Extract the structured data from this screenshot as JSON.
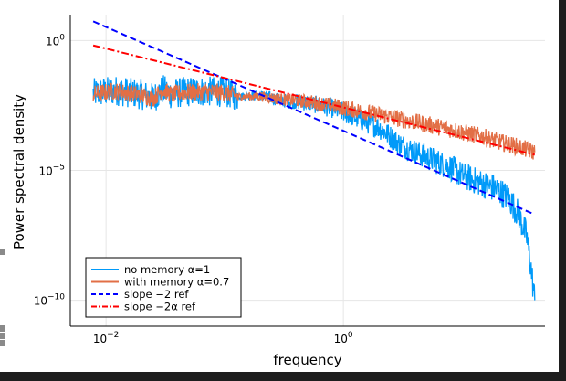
{
  "chart_data": {
    "type": "line",
    "title": "",
    "xlabel": "frequency",
    "ylabel": "Power spectral density",
    "xscale": "log",
    "yscale": "log",
    "xlim": [
      0.005,
      50
    ],
    "ylim": [
      1e-11,
      10
    ],
    "grid": true,
    "legend_position": "bottom-left",
    "x_ticks": [
      {
        "value": 0.01,
        "base": "10",
        "exp": "−2"
      },
      {
        "value": 1,
        "base": "10",
        "exp": "0"
      }
    ],
    "y_ticks": [
      {
        "value": 1,
        "base": "10",
        "exp": "0"
      },
      {
        "value": 1e-05,
        "base": "10",
        "exp": "−5"
      },
      {
        "value": 1e-10,
        "base": "10",
        "exp": "−10"
      }
    ],
    "x_extent": [
      0.0078,
      41
    ],
    "series": [
      {
        "name": "no memory α=1",
        "color": "#009af9",
        "style": "solid",
        "points": [
          [
            0.0078,
            0.0093
          ],
          [
            0.012,
            0.012
          ],
          [
            0.02,
            0.0083
          ],
          [
            0.025,
            0.0061
          ],
          [
            0.03,
            0.013
          ],
          [
            0.036,
            0.0084
          ],
          [
            0.045,
            0.0105
          ],
          [
            0.06,
            0.011
          ],
          [
            0.08,
            0.0109
          ],
          [
            0.1,
            0.0104
          ],
          [
            0.13,
            0.0072
          ],
          [
            0.2,
            0.008
          ],
          [
            0.3,
            0.005
          ],
          [
            0.5,
            0.004
          ],
          [
            0.8,
            0.0025
          ],
          [
            1,
            0.0017
          ],
          [
            2,
            0.00045
          ],
          [
            3,
            0.0001
          ],
          [
            5,
            3.3e-05
          ],
          [
            8,
            1.3e-05
          ],
          [
            10,
            6.5e-06
          ],
          [
            15,
            3e-06
          ],
          [
            20,
            1.8e-06
          ],
          [
            25,
            8e-07
          ],
          [
            30,
            2e-07
          ],
          [
            35,
            3e-08
          ],
          [
            38,
            2e-09
          ],
          [
            41,
            1e-10
          ]
        ],
        "noise": [
          [
            0.13,
            0.3
          ],
          [
            0.3,
            0.6
          ],
          [
            1,
            0.9
          ],
          [
            5,
            1.1
          ],
          [
            41,
            1.3
          ]
        ]
      },
      {
        "name": "with memory α=0.7",
        "color": "#e26f46",
        "style": "solid",
        "points": [
          [
            0.0078,
            0.0088
          ],
          [
            0.012,
            0.0115
          ],
          [
            0.02,
            0.008
          ],
          [
            0.025,
            0.006
          ],
          [
            0.03,
            0.0128
          ],
          [
            0.036,
            0.0082
          ],
          [
            0.045,
            0.0102
          ],
          [
            0.06,
            0.0105
          ],
          [
            0.08,
            0.0105
          ],
          [
            0.1,
            0.01
          ],
          [
            0.13,
            0.007
          ],
          [
            0.2,
            0.0072
          ],
          [
            0.3,
            0.0055
          ],
          [
            0.5,
            0.0045
          ],
          [
            0.8,
            0.0032
          ],
          [
            1,
            0.0026
          ],
          [
            2,
            0.0014
          ],
          [
            3,
            0.00095
          ],
          [
            5,
            0.0006
          ],
          [
            8,
            0.00038
          ],
          [
            10,
            0.0003
          ],
          [
            15,
            0.0002
          ],
          [
            20,
            0.00013
          ],
          [
            30,
            8e-05
          ],
          [
            41,
            5e-05
          ]
        ],
        "noise": [
          [
            0.13,
            0.3
          ],
          [
            0.3,
            0.55
          ],
          [
            1,
            0.7
          ],
          [
            5,
            0.75
          ],
          [
            41,
            0.75
          ]
        ]
      },
      {
        "name": "slope −2 ref",
        "color": "#0000ff",
        "style": "dashed",
        "points": [
          [
            0.0078,
            5.5
          ],
          [
            41,
            2e-07
          ]
        ]
      },
      {
        "name": "slope −2α ref",
        "color": "#ff0000",
        "style": "dashdot",
        "points": [
          [
            0.0078,
            0.65
          ],
          [
            41,
            4e-05
          ]
        ]
      }
    ]
  }
}
